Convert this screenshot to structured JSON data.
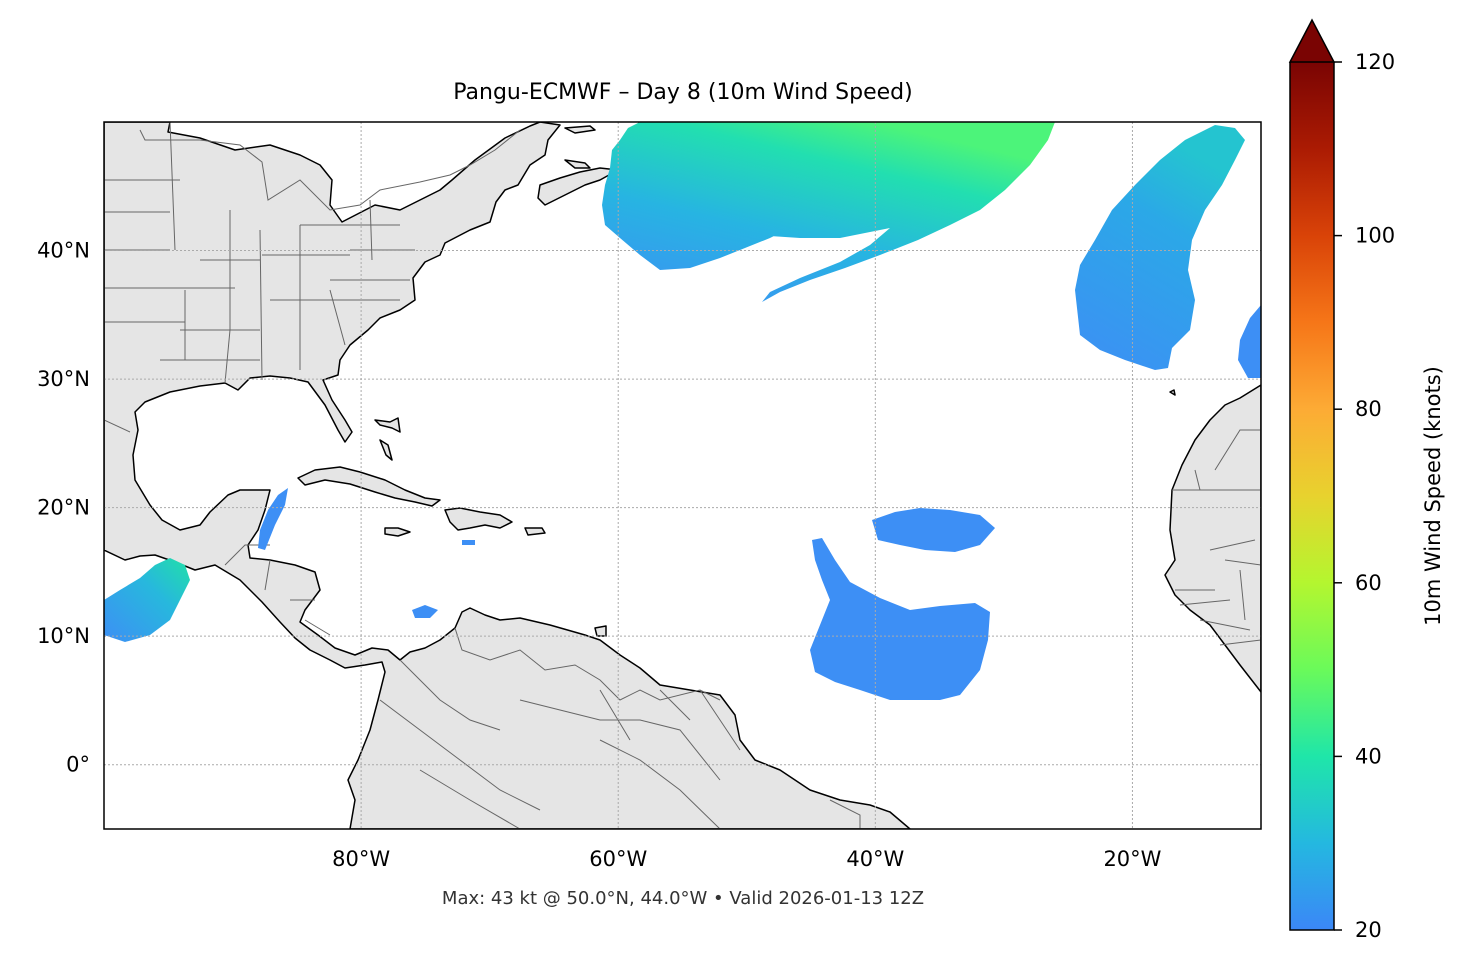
{
  "title": "Pangu-ECMWF – Day 8 (10m Wind Speed)",
  "footer": "Max: 43 kt @ 50.0°N, 44.0°W • Valid 2026-01-13 12Z",
  "map": {
    "lon_range": [
      -100,
      -10
    ],
    "lat_range": [
      -5,
      50
    ],
    "lat_ticks": [
      {
        "value": 40,
        "label": "40°N"
      },
      {
        "value": 30,
        "label": "30°N"
      },
      {
        "value": 20,
        "label": "20°N"
      },
      {
        "value": 10,
        "label": "10°N"
      },
      {
        "value": 0,
        "label": "0°"
      }
    ],
    "lon_ticks": [
      {
        "value": -80,
        "label": "80°W"
      },
      {
        "value": -60,
        "label": "60°W"
      },
      {
        "value": -40,
        "label": "40°W"
      },
      {
        "value": -20,
        "label": "20°W"
      }
    ],
    "gridlines": true,
    "land_color": "#e5e5e5",
    "coast_color": "#000000",
    "border_color": "#666666"
  },
  "colorbar": {
    "label": "10m Wind Speed (knots)",
    "min": 20,
    "max": 120,
    "ticks": [
      {
        "value": 20,
        "label": "20"
      },
      {
        "value": 40,
        "label": "40"
      },
      {
        "value": 60,
        "label": "60"
      },
      {
        "value": 80,
        "label": "80"
      },
      {
        "value": 100,
        "label": "100"
      },
      {
        "value": 120,
        "label": "120"
      }
    ],
    "extend": "max",
    "colormap": "turbo",
    "arrow_color": "#7a0403"
  },
  "max_wind": {
    "speed_kt": 43,
    "lat": 50.0,
    "lon": -44.0
  }
}
